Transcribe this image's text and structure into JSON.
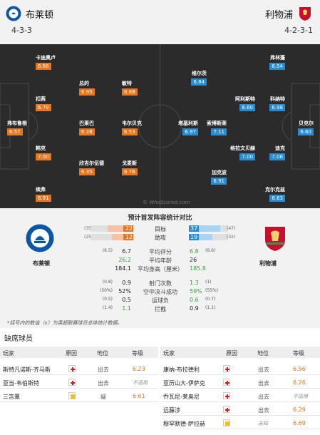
{
  "header": {
    "home_name": "布莱顿",
    "away_name": "利物浦",
    "home_formation": "4-3-3",
    "away_formation": "4-2-3-1"
  },
  "colors": {
    "home_accent": "#e8761f",
    "away_accent": "#2a8bd0",
    "pitch": "#2b2b2b",
    "positive": "#3aa142"
  },
  "pitch": {
    "watermark": "© WhoScored.com",
    "home_players": [
      {
        "name": "卡迪奥卢",
        "rating": "6.66"
      },
      {
        "name": "扣茜",
        "rating": "6.79"
      },
      {
        "name": "弗布鲁根",
        "rating": "6.57"
      },
      {
        "name": "韩克",
        "rating": "7.00"
      },
      {
        "name": "续弗",
        "rating": "6.91"
      },
      {
        "name": "总的",
        "rating": "6.95"
      },
      {
        "name": "巴莱巴",
        "rating": "6.28"
      },
      {
        "name": "欣吉尔伍德",
        "rating": "6.35"
      },
      {
        "name": "敏特",
        "rating": "6.88"
      },
      {
        "name": "韦尔贝克",
        "rating": "6.53"
      },
      {
        "name": "戈麦斯",
        "rating": "6.76"
      }
    ],
    "away_players": [
      {
        "name": "维尔茨",
        "rating": "6.84"
      },
      {
        "name": "塔基利斯",
        "rating": "6.97"
      },
      {
        "name": "加克波",
        "rating": "6.91"
      },
      {
        "name": "阿利斯特",
        "rating": "6.60"
      },
      {
        "name": "索博斯莱",
        "rating": "7.11"
      },
      {
        "name": "格拉文贝赫",
        "rating": "7.00"
      },
      {
        "name": "弗林蓬",
        "rating": "6.54"
      },
      {
        "name": "科纳特",
        "rating": "6.98"
      },
      {
        "name": "迪克",
        "rating": "7.06"
      },
      {
        "name": "克尔克兹",
        "rating": "6.63"
      },
      {
        "name": "贝克尔",
        "rating": "6.60"
      }
    ]
  },
  "stats": {
    "title": "预计首发阵容统计对比",
    "bars": [
      {
        "label": "目标",
        "home": "22",
        "home_paren": "(35)",
        "away": "37",
        "away_paren": "(47)",
        "home_frac": 0.6,
        "away_frac": 0.8
      },
      {
        "label": "助攻",
        "home": "12",
        "home_paren": "(25)",
        "away": "19",
        "away_paren": "(32)",
        "home_frac": 0.5,
        "away_frac": 0.6
      }
    ],
    "rows": [
      {
        "label": "平均评分",
        "home": "6.7",
        "home_paren": "(6.5)",
        "away": "6.8",
        "away_paren": "(6.6)",
        "home_green": false,
        "away_green": true
      },
      {
        "label": "平均年龄",
        "home": "26.2",
        "home_paren": "",
        "away": "26",
        "away_paren": "",
        "home_green": true,
        "away_green": false
      },
      {
        "label": "平均身高（厘米）",
        "home": "184.1",
        "home_paren": "",
        "away": "185.8",
        "away_paren": "",
        "home_green": false,
        "away_green": true
      },
      {
        "label": "射门次数",
        "home": "0.9",
        "home_paren": "(0.8)",
        "away": "1.3",
        "away_paren": "(1)",
        "home_green": false,
        "away_green": true
      },
      {
        "label": "空中决斗成功",
        "home": "52%",
        "home_paren": "(50%)",
        "away": "59%",
        "away_paren": "(55%)",
        "home_green": false,
        "away_green": true
      },
      {
        "label": "运球负",
        "home": "0.5",
        "home_paren": "(0.5)",
        "away": "0.6",
        "away_paren": "(0.7)",
        "home_green": false,
        "away_green": true
      },
      {
        "label": "拦截",
        "home": "1.1",
        "home_paren": "(1.4)",
        "away": "0.9",
        "away_paren": "(1.1)",
        "home_green": true,
        "away_green": false
      }
    ],
    "footnote": "*括号内的数值（x）为英超联赛球员总体统计数据。"
  },
  "missing": {
    "title": "缺席球员",
    "headers": {
      "player": "玩家",
      "reason": "原因",
      "status": "地位",
      "rating": "等级"
    },
    "home": [
      {
        "name": "斯特凡诺斯-齐马斯",
        "icon": "injury",
        "status": "出去",
        "rating": "6.23"
      },
      {
        "name": "亚当-韦伯斯特",
        "icon": "injury",
        "status": "出去",
        "rating": "不适用"
      },
      {
        "name": "三笘薰",
        "icon": "doubt",
        "status": "疑",
        "rating": "6.61"
      }
    ],
    "away": [
      {
        "name": "康纳-布拉德利",
        "icon": "injury",
        "status": "出去",
        "rating": "6.56"
      },
      {
        "name": "亚历山大-伊萨克",
        "icon": "injury",
        "status": "出去",
        "rating": "6.26"
      },
      {
        "name": "乔瓦尼-莱奥尼",
        "icon": "injury",
        "status": "出去",
        "rating": "不适用"
      },
      {
        "name": "远藤涉",
        "icon": "injury",
        "status": "出去",
        "rating": "6.29"
      },
      {
        "name": "穆罕默德-萨拉赫",
        "icon": "doubt",
        "status": "未知",
        "rating": "6.69"
      }
    ]
  }
}
